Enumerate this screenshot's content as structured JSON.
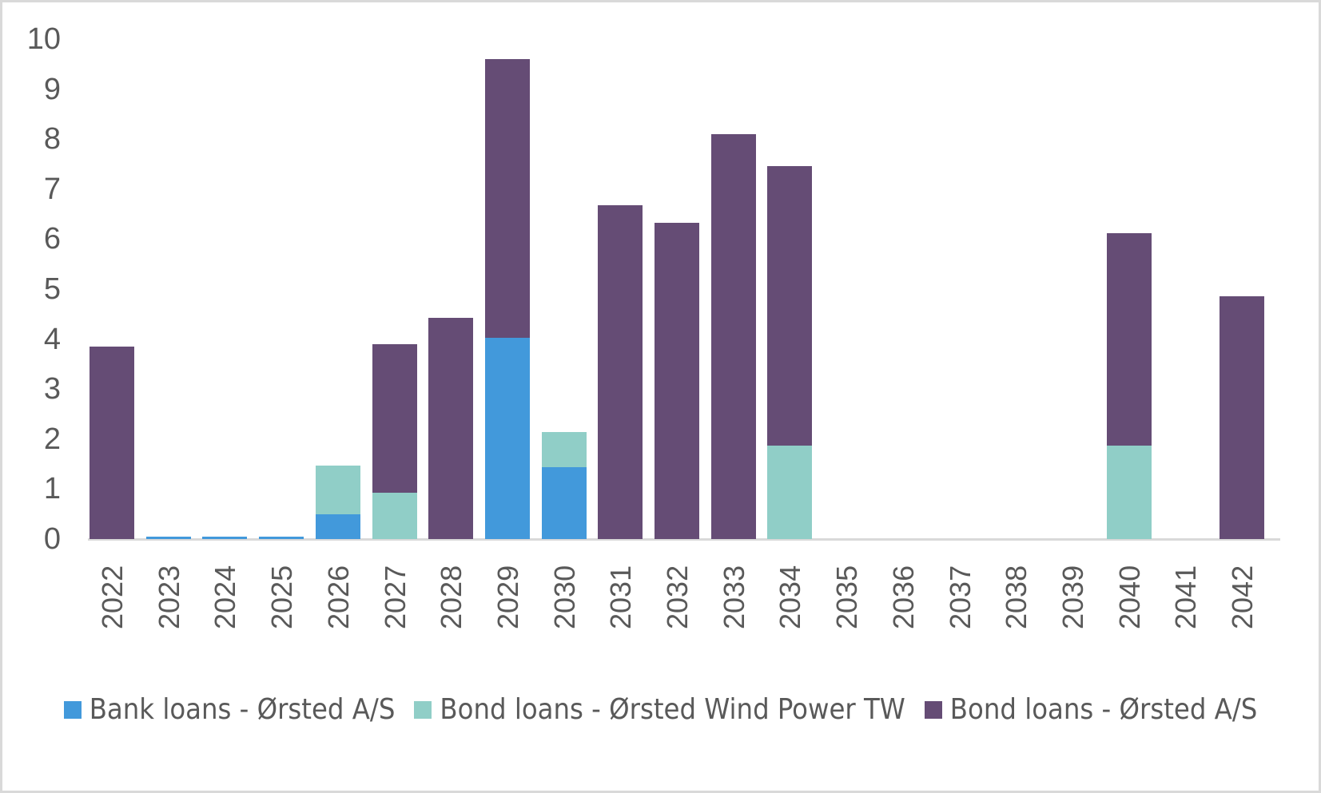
{
  "chart_data": {
    "type": "bar",
    "stacked": true,
    "title": "",
    "xlabel": "",
    "ylabel": "",
    "ylim": [
      0,
      10
    ],
    "yticks": [
      0,
      1,
      2,
      3,
      4,
      5,
      6,
      7,
      8,
      9,
      10
    ],
    "grid": false,
    "legend_position": "bottom",
    "categories": [
      "2022",
      "2023",
      "2024",
      "2025",
      "2026",
      "2027",
      "2028",
      "2029",
      "2030",
      "2031",
      "2032",
      "2033",
      "2034",
      "2035",
      "2036",
      "2037",
      "2038",
      "2039",
      "2040",
      "2041",
      "2042"
    ],
    "series": [
      {
        "name": "Bank loans - Ørsted A/S",
        "color": "#4299DB",
        "values": [
          0,
          0.05,
          0.05,
          0.05,
          0.5,
          0,
          0,
          4.03,
          1.44,
          0,
          0,
          0,
          0,
          0,
          0,
          0,
          0,
          0,
          0,
          0,
          0
        ]
      },
      {
        "name": "Bond loans - Ørsted Wind Power TW",
        "color": "#90CEC7",
        "values": [
          0,
          0,
          0,
          0,
          0.97,
          0.93,
          0,
          0,
          0.7,
          0,
          0,
          0,
          1.87,
          0,
          0,
          0,
          0,
          0,
          1.87,
          0,
          0
        ]
      },
      {
        "name": "Bond loans - Ørsted A/S",
        "color": "#654C75",
        "values": [
          3.85,
          0,
          0,
          0,
          0,
          2.97,
          4.43,
          5.57,
          0,
          6.67,
          6.33,
          8.1,
          5.59,
          0,
          0,
          0,
          0,
          0,
          4.25,
          0,
          4.86
        ]
      }
    ]
  }
}
